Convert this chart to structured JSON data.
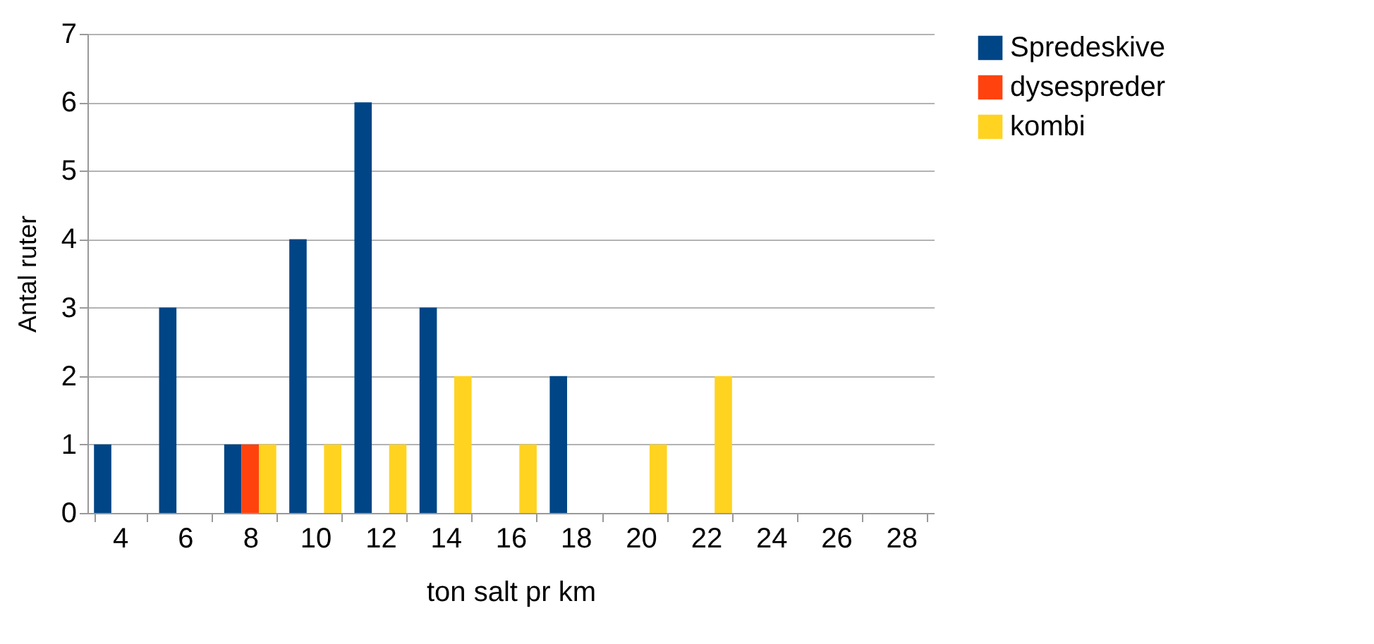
{
  "chart_data": {
    "type": "bar",
    "xlabel": "ton salt pr km",
    "ylabel": "Antal ruter",
    "categories": [
      "4",
      "6",
      "8",
      "10",
      "12",
      "14",
      "16",
      "18",
      "20",
      "22",
      "24",
      "26",
      "28"
    ],
    "series": [
      {
        "name": "Spredeskive",
        "color": "#004586",
        "values": [
          1,
          3,
          1,
          4,
          6,
          3,
          0,
          2,
          0,
          0,
          0,
          0,
          0
        ]
      },
      {
        "name": "dysespreder",
        "color": "#ff420e",
        "values": [
          0,
          0,
          1,
          0,
          0,
          0,
          0,
          0,
          0,
          0,
          0,
          0,
          0
        ]
      },
      {
        "name": "kombi",
        "color": "#ffd320",
        "values": [
          0,
          0,
          1,
          1,
          1,
          2,
          1,
          0,
          1,
          2,
          0,
          0,
          0
        ]
      }
    ],
    "ylim": [
      0,
      7
    ],
    "yticks": [
      0,
      1,
      2,
      3,
      4,
      5,
      6,
      7
    ],
    "grid": "y",
    "legend": "right"
  }
}
